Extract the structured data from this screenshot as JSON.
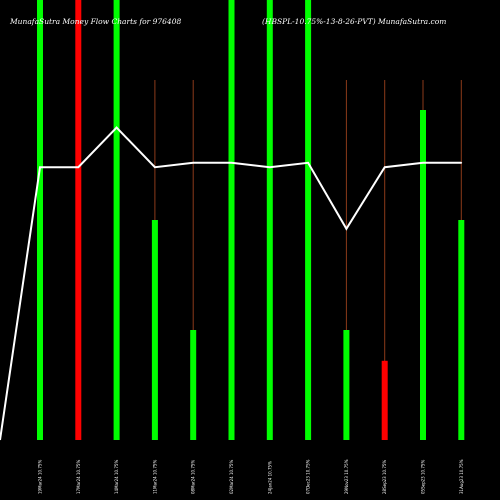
{
  "header": {
    "title_left": "MunafaSutra  Money Flow  Charts for 976408",
    "title_right": "(HBSPL-10.75%-13-8-26-PVT) MunafaSutra.com"
  },
  "colors": {
    "background": "#000000",
    "positive": "#00ff00",
    "negative": "#ff0000",
    "line": "#ffffff",
    "stem": "#8b3a1a"
  },
  "chart_data": {
    "type": "bar",
    "title": "MunafaSutra  Money Flow  Charts for 976408 (HBSPL-10.75%-13-8-26-PVT) MunafaSutra.com",
    "categories": [
      "19Mar24 10.75%",
      "17Mar24 10.75%",
      "14Mar24 10.75%",
      "11Mar24 10.75%",
      "08Mar24 10.75%",
      "02Mar24 10.75%",
      "24Jan24 10.75%",
      "07Dec23 10.75%",
      "29Nov23 10.75%",
      "28Sep23 10.75%",
      "05Sep23 10.75%",
      "31Aug23 10.75%"
    ],
    "series": [
      {
        "values": [
          100,
          100,
          100,
          50,
          25,
          100,
          100,
          100,
          25,
          18,
          75,
          50
        ],
        "colors": [
          "green",
          "red",
          "green",
          "green",
          "green",
          "green",
          "green",
          "green",
          "green",
          "red",
          "green",
          "green"
        ]
      }
    ],
    "line_values": [
      62,
      62,
      71,
      62,
      63,
      63,
      62,
      63,
      48,
      62,
      63,
      63
    ],
    "line_start": 0,
    "ylim": [
      0,
      100
    ],
    "grid": false,
    "legend": "none"
  }
}
